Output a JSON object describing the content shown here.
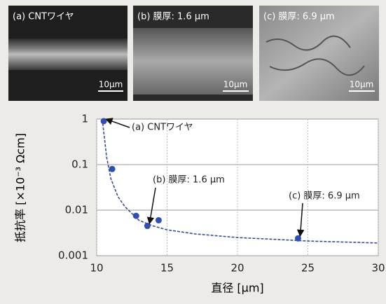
{
  "panels": [
    {
      "label": "(a) CNTワイヤ",
      "scale_bar": "10μm"
    },
    {
      "label": "(b) 膜厚: 1.6 μm",
      "scale_bar": "10μm"
    },
    {
      "label": "(c) 膜厚: 6.9 μm",
      "scale_bar": "10μm"
    }
  ],
  "chart_data": {
    "type": "scatter",
    "x_label": "直径 [μm]",
    "y_label": "抵抗率 [×10⁻³ Ωcm]",
    "log_y": true,
    "grid": true,
    "xlim": [
      10,
      30
    ],
    "ylim": [
      0.001,
      1
    ],
    "xticks": [
      10,
      15,
      20,
      25,
      30
    ],
    "yticks": [
      0.001,
      0.01,
      0.1,
      1
    ],
    "series": [
      {
        "color": "#2f50b0",
        "x": [
          10.5,
          11.1,
          12.8,
          13.6,
          14.4,
          24.3
        ],
        "values": [
          0.9,
          0.08,
          0.0075,
          0.0045,
          0.006,
          0.0024
        ]
      }
    ],
    "fit": {
      "color": "#3a4a9a",
      "x": [
        10.4,
        10.7,
        11,
        11.5,
        12,
        13,
        14,
        15,
        17,
        20,
        25,
        30
      ],
      "values": [
        1,
        0.15,
        0.05,
        0.02,
        0.012,
        0.006,
        0.0045,
        0.0037,
        0.003,
        0.0025,
        0.0021,
        0.0019
      ]
    },
    "annotations": [
      "(a) CNTワイヤ",
      "(b) 膜厚: 1.6 μm",
      "(c) 膜厚: 6.9 μm"
    ]
  }
}
